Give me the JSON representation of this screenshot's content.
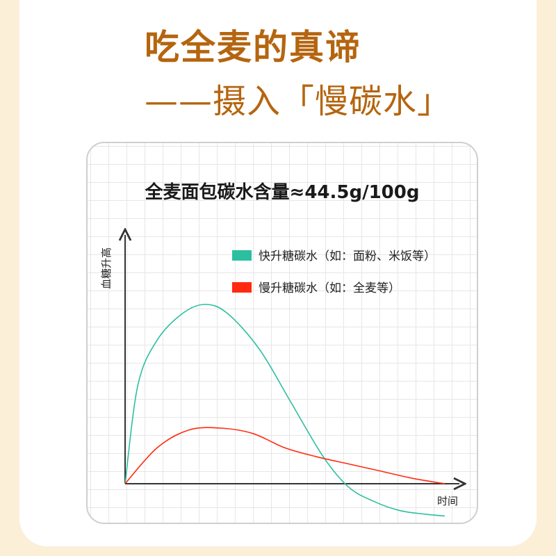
{
  "header": {
    "line1": "吃全麦的真谛",
    "line2": "——摄入「慢碳水」"
  },
  "colors": {
    "title": "#b5650f",
    "fast": "#2bbf9f",
    "slow": "#ff2a10",
    "background": "#fcefd8"
  },
  "chart_data": {
    "type": "line",
    "title": "全麦面包碳水含量≈44.5g/100g",
    "xlabel": "时间",
    "ylabel": "血糖升高",
    "legend_position": "top-right",
    "grid": true,
    "series": [
      {
        "name": "快升糖碳水（如：面粉、米饭等）",
        "color": "#2bbf9f",
        "x": [
          0,
          0.04,
          0.1,
          0.18,
          0.25,
          0.32,
          0.42,
          0.52,
          0.62,
          0.7,
          0.78,
          0.86,
          0.94,
          1.0
        ],
        "y": [
          0,
          0.55,
          0.8,
          0.95,
          1.0,
          0.95,
          0.75,
          0.45,
          0.15,
          -0.02,
          -0.1,
          -0.15,
          -0.17,
          -0.18
        ]
      },
      {
        "name": "慢升糖碳水（如：全麦等）",
        "color": "#ff2a10",
        "x": [
          0,
          0.1,
          0.2,
          0.3,
          0.4,
          0.5,
          0.6,
          0.7,
          0.8,
          0.9,
          1.0
        ],
        "y": [
          0,
          0.2,
          0.3,
          0.31,
          0.28,
          0.2,
          0.15,
          0.11,
          0.07,
          0.03,
          0
        ]
      }
    ]
  }
}
